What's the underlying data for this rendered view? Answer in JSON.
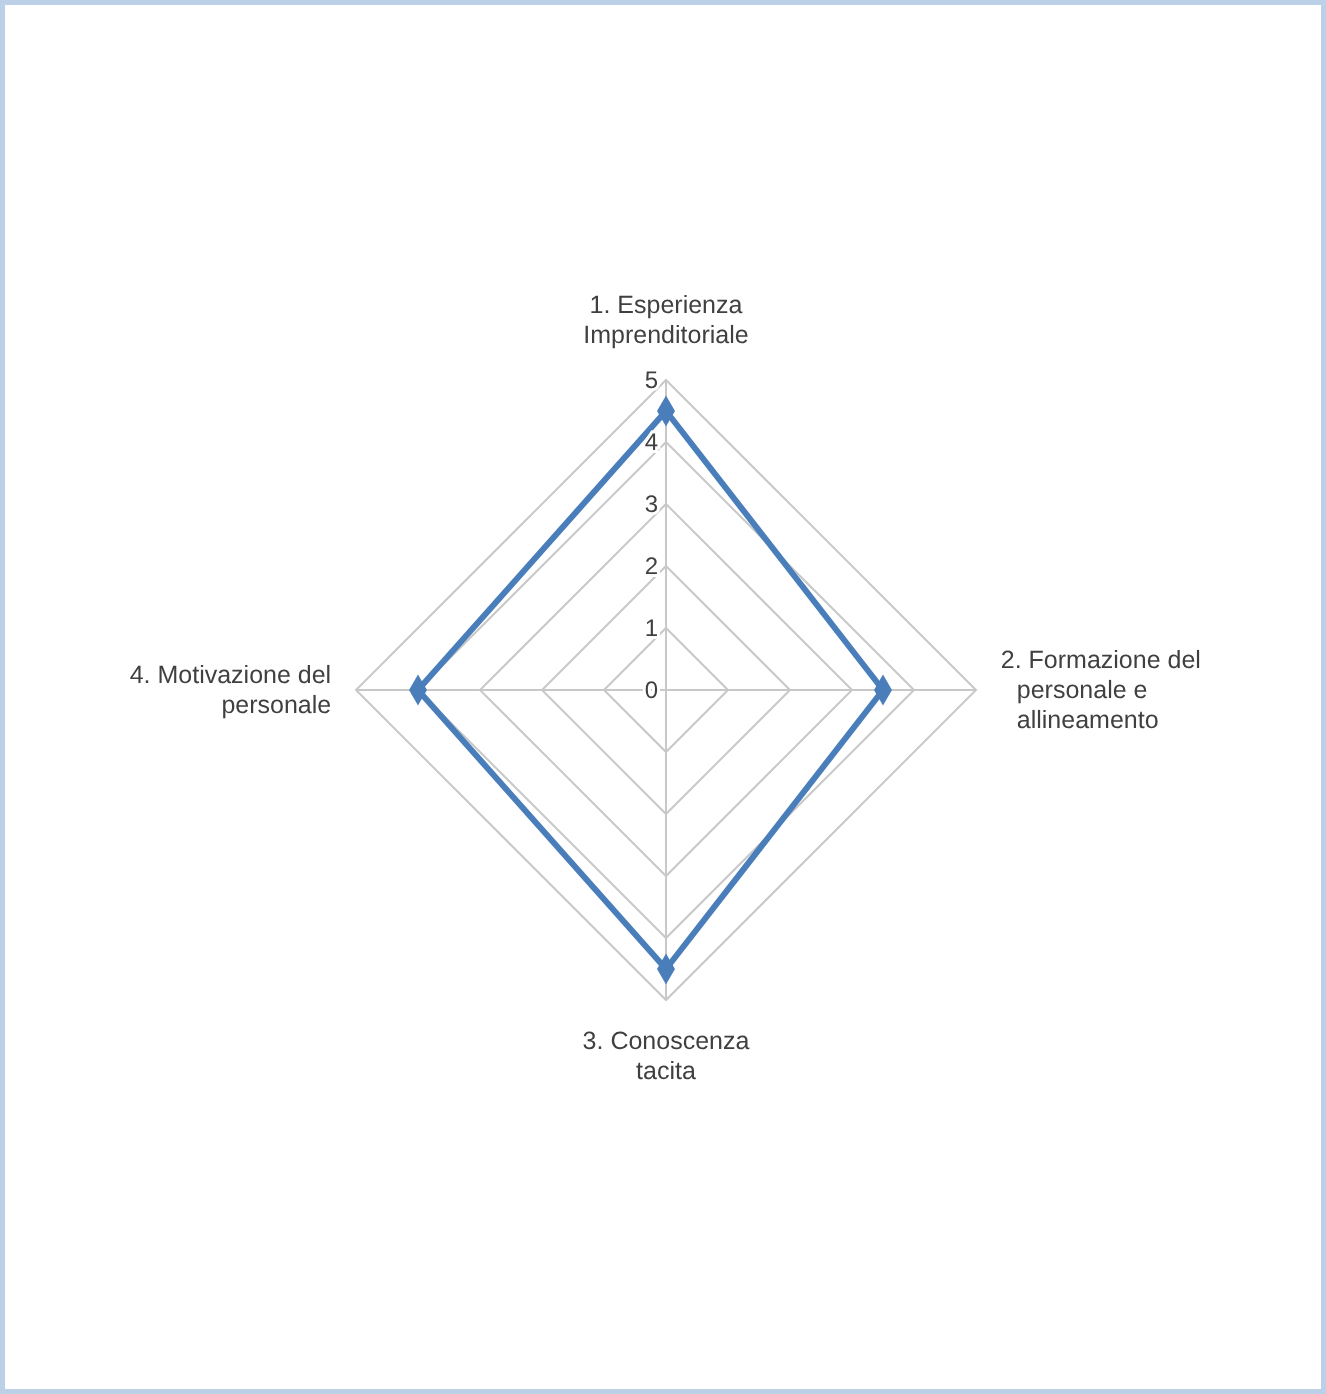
{
  "chart_data": {
    "type": "radar",
    "categories": [
      "1. Esperienza Imprenditoriale",
      "2. Formazione del personale e allineamento",
      "3. Conoscenza tacita",
      "4. Motivazione del personale"
    ],
    "series": [
      {
        "color": "#4a7ebb",
        "values": [
          4.5,
          3.5,
          4.5,
          4
        ]
      }
    ],
    "ylim": [
      0,
      5
    ],
    "yticks": [
      0,
      1,
      2,
      3,
      4,
      5
    ],
    "grid": true,
    "marker": "diamond"
  }
}
